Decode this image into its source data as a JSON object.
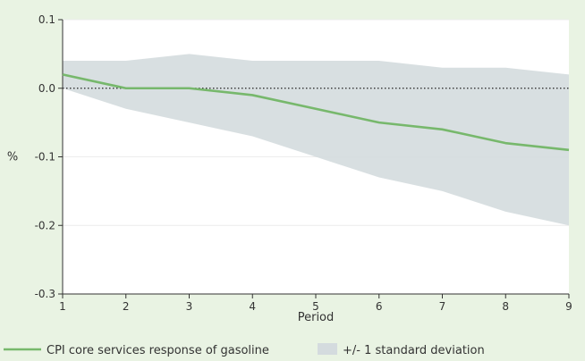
{
  "chart_data": {
    "type": "line",
    "title": "",
    "xlabel": "Period",
    "ylabel": "%",
    "x": [
      1,
      2,
      3,
      4,
      5,
      6,
      7,
      8,
      9
    ],
    "xlim": [
      1,
      9
    ],
    "ylim": [
      -0.3,
      0.1
    ],
    "y_ticks": [
      0.1,
      0.0,
      -0.1,
      -0.2,
      -0.3
    ],
    "y_tick_labels": [
      "0.1",
      "0.0",
      "-0.1",
      "-0.2",
      "-0.3"
    ],
    "x_ticks": [
      1,
      2,
      3,
      4,
      5,
      6,
      7,
      8,
      9
    ],
    "x_tick_labels": [
      "1",
      "2",
      "3",
      "4",
      "5",
      "6",
      "7",
      "8",
      "9"
    ],
    "grid": true,
    "zero_line_style": "dotted",
    "series": [
      {
        "name": "CPI core services response of gasoline",
        "values": [
          0.02,
          0.0,
          0.0,
          -0.01,
          -0.03,
          -0.05,
          -0.06,
          -0.08,
          -0.09
        ],
        "color": "#77b86c"
      }
    ],
    "band": {
      "name": "+/- 1 standard deviation",
      "upper": [
        0.04,
        0.04,
        0.05,
        0.04,
        0.04,
        0.04,
        0.03,
        0.03,
        0.02
      ],
      "lower": [
        0.0,
        -0.03,
        -0.05,
        -0.07,
        -0.1,
        -0.13,
        -0.15,
        -0.18,
        -0.2
      ],
      "color": "#d4dbde"
    },
    "legend": {
      "position": "bottom",
      "entries": [
        "CPI core services response of gasoline",
        "+/- 1 standard deviation"
      ]
    }
  }
}
